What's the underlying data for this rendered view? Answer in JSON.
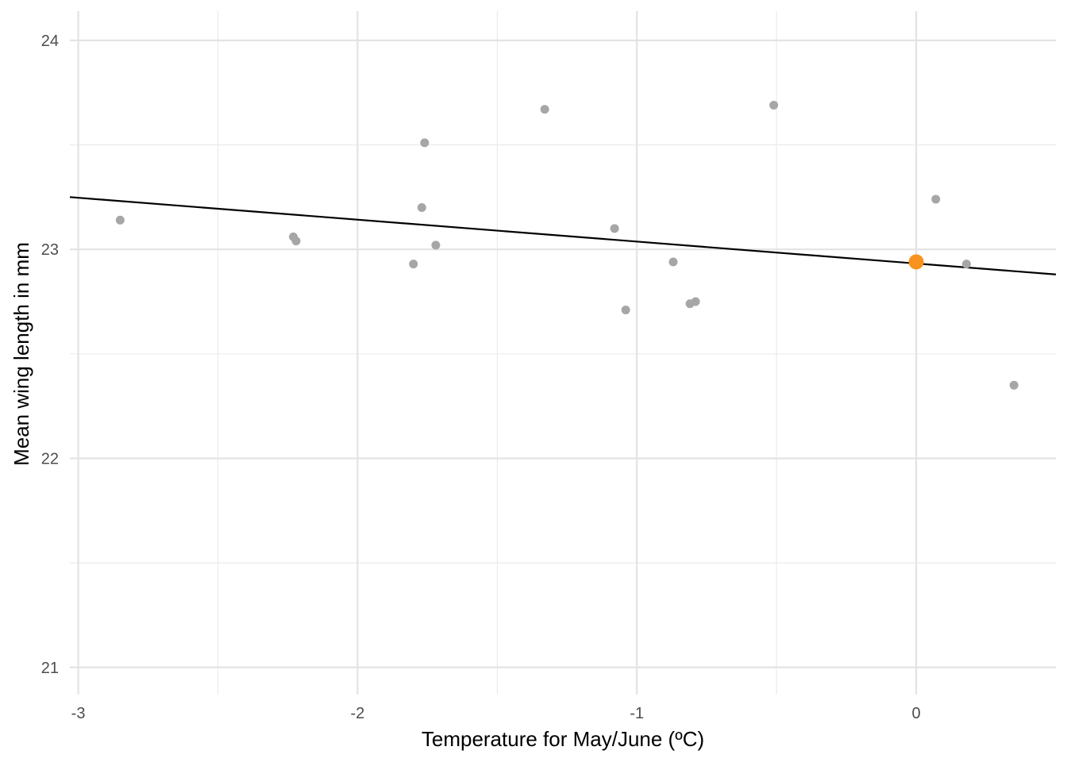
{
  "chart_data": {
    "type": "scatter",
    "title": "",
    "xlabel": "Temperature for May/June (ºC)",
    "ylabel": "Mean wing length in mm",
    "xlim": [
      -3.03,
      0.5
    ],
    "ylim": [
      20.87,
      24.14
    ],
    "x_ticks": [
      -3,
      -2,
      -1,
      0
    ],
    "x_tick_labels": [
      "-3",
      "-2",
      "-1",
      "0"
    ],
    "y_ticks": [
      21,
      22,
      23,
      24
    ],
    "y_tick_labels": [
      "21",
      "22",
      "23",
      "24"
    ],
    "grid": true,
    "series": [
      {
        "color": "#a6a6a6",
        "points": [
          {
            "x": -2.85,
            "y": 23.14
          },
          {
            "x": -2.23,
            "y": 23.06
          },
          {
            "x": -2.22,
            "y": 23.04
          },
          {
            "x": -1.8,
            "y": 22.93
          },
          {
            "x": -1.77,
            "y": 23.2
          },
          {
            "x": -1.76,
            "y": 23.51
          },
          {
            "x": -1.72,
            "y": 23.02
          },
          {
            "x": -1.33,
            "y": 23.67
          },
          {
            "x": -1.08,
            "y": 23.1
          },
          {
            "x": -1.04,
            "y": 22.71
          },
          {
            "x": -0.87,
            "y": 22.94
          },
          {
            "x": -0.81,
            "y": 22.74
          },
          {
            "x": -0.79,
            "y": 22.75
          },
          {
            "x": -0.51,
            "y": 23.69
          },
          {
            "x": 0.07,
            "y": 23.24
          },
          {
            "x": 0.18,
            "y": 22.93
          },
          {
            "x": 0.35,
            "y": 22.35
          }
        ]
      },
      {
        "color": "#f7931e",
        "points": [
          {
            "x": 0.0,
            "y": 22.94
          }
        ]
      }
    ],
    "trend_line": {
      "color": "#000000",
      "x": [
        -3.03,
        0.5
      ],
      "y": [
        23.25,
        22.88
      ]
    }
  }
}
